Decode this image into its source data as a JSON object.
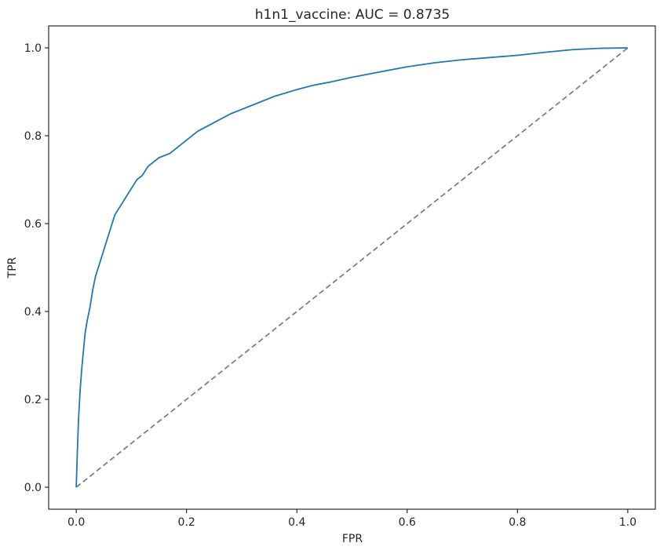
{
  "chart_data": {
    "type": "line",
    "title": "h1n1_vaccine: AUC = 0.8735",
    "xlabel": "FPR",
    "ylabel": "TPR",
    "xlim": [
      -0.05,
      1.05
    ],
    "ylim": [
      -0.05,
      1.05
    ],
    "xticks": [
      0.0,
      0.2,
      0.4,
      0.6,
      0.8,
      1.0
    ],
    "yticks": [
      0.0,
      0.2,
      0.4,
      0.6,
      0.8,
      1.0
    ],
    "xtick_labels": [
      "0.0",
      "0.2",
      "0.4",
      "0.6",
      "0.8",
      "1.0"
    ],
    "ytick_labels": [
      "0.0",
      "0.2",
      "0.4",
      "0.6",
      "0.8",
      "1.0"
    ],
    "grid": false,
    "legend": false,
    "series": [
      {
        "color": "#1f77b4",
        "style": "solid",
        "x": [
          0.0,
          0.002,
          0.004,
          0.007,
          0.01,
          0.013,
          0.016,
          0.02,
          0.025,
          0.03,
          0.035,
          0.04,
          0.045,
          0.05,
          0.055,
          0.06,
          0.065,
          0.07,
          0.08,
          0.09,
          0.1,
          0.11,
          0.12,
          0.13,
          0.14,
          0.15,
          0.16,
          0.17,
          0.18,
          0.2,
          0.22,
          0.25,
          0.28,
          0.3,
          0.33,
          0.36,
          0.4,
          0.43,
          0.46,
          0.5,
          0.55,
          0.6,
          0.65,
          0.7,
          0.75,
          0.8,
          0.85,
          0.9,
          0.95,
          1.0
        ],
        "y": [
          0.0,
          0.08,
          0.15,
          0.22,
          0.27,
          0.31,
          0.35,
          0.38,
          0.41,
          0.45,
          0.48,
          0.5,
          0.52,
          0.54,
          0.56,
          0.58,
          0.6,
          0.62,
          0.64,
          0.66,
          0.68,
          0.7,
          0.71,
          0.73,
          0.74,
          0.75,
          0.755,
          0.76,
          0.77,
          0.79,
          0.81,
          0.83,
          0.85,
          0.86,
          0.875,
          0.89,
          0.905,
          0.915,
          0.922,
          0.933,
          0.945,
          0.957,
          0.966,
          0.973,
          0.978,
          0.983,
          0.99,
          0.996,
          0.999,
          1.0
        ]
      },
      {
        "color": "#808080",
        "style": "dashed",
        "x": [
          0.0,
          1.0
        ],
        "y": [
          0.0,
          1.0
        ]
      }
    ]
  }
}
